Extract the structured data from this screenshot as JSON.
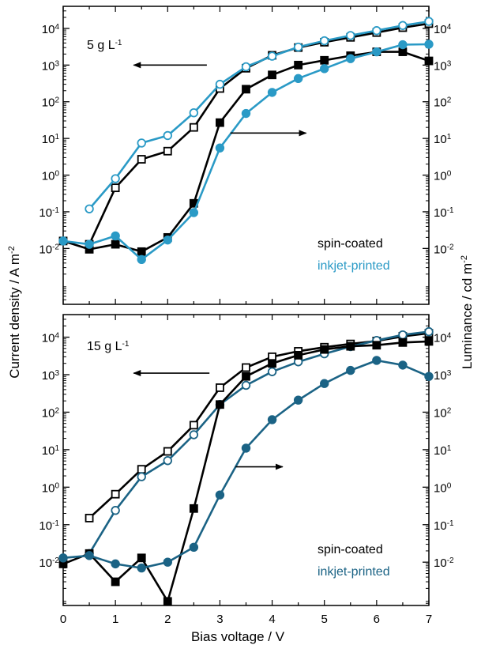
{
  "figure": {
    "left_axis_label": "Current density / A m",
    "left_axis_label_sup": "-2",
    "right_axis_label": "Luminance / cd m",
    "right_axis_label_sup": "-2",
    "x_axis_label": "Bias voltage / V"
  },
  "chart_data": [
    {
      "type": "line",
      "panel": "top",
      "annotation": "5 g L",
      "annotation_sup": "-1",
      "x": [
        0,
        0.5,
        1,
        1.5,
        2,
        2.5,
        3,
        3.5,
        4,
        4.5,
        5,
        5.5,
        6,
        6.5,
        7
      ],
      "xlim": [
        0,
        7
      ],
      "ylim": [
        0.0003,
        40000
      ],
      "yscale": "log",
      "y_ticks": [
        {
          "label": "10",
          "exp": "-2",
          "value": 0.01
        },
        {
          "label": "10",
          "exp": "-1",
          "value": 0.1
        },
        {
          "label": "10",
          "exp": "0",
          "value": 1
        },
        {
          "label": "10",
          "exp": "1",
          "value": 10
        },
        {
          "label": "10",
          "exp": "2",
          "value": 100
        },
        {
          "label": "10",
          "exp": "3",
          "value": 1000
        },
        {
          "label": "10",
          "exp": "4",
          "value": 10000
        }
      ],
      "legend": [
        {
          "label": "spin-coated",
          "color": "#000000"
        },
        {
          "label": "inkjet-printed",
          "color": "#2a9ac6"
        }
      ],
      "series": [
        {
          "name": "spin-coated",
          "axis": "left",
          "marker": "square",
          "filled": false,
          "color": "#000000",
          "x": [
            0.5,
            1,
            1.5,
            2,
            2.5,
            3,
            3.5,
            4,
            4.5,
            5,
            5.5,
            6,
            6.5,
            7
          ],
          "values": [
            0.013,
            0.45,
            2.7,
            4.5,
            20,
            230,
            820,
            1850,
            3000,
            4200,
            5700,
            7700,
            10500,
            13500
          ]
        },
        {
          "name": "inkjet-printed",
          "axis": "left",
          "marker": "circle",
          "filled": false,
          "color": "#2a9ac6",
          "x": [
            0.5,
            1,
            1.5,
            2,
            2.5,
            3,
            3.5,
            4,
            4.5,
            5,
            5.5,
            6,
            6.5,
            7
          ],
          "values": [
            0.12,
            0.8,
            7.5,
            12,
            50,
            300,
            900,
            1750,
            3100,
            4600,
            6400,
            8700,
            12000,
            15500
          ]
        },
        {
          "name": "spin-coated",
          "axis": "right",
          "marker": "square",
          "filled": true,
          "color": "#000000",
          "x": [
            0,
            0.5,
            1,
            1.5,
            2,
            2.5,
            3,
            3.5,
            4,
            4.5,
            5,
            5.5,
            6,
            6.5,
            7
          ],
          "values": [
            0.016,
            0.0095,
            0.013,
            0.0082,
            0.02,
            0.17,
            27,
            220,
            540,
            1000,
            1350,
            1800,
            2300,
            2300,
            1300
          ]
        },
        {
          "name": "inkjet-printed",
          "axis": "right",
          "marker": "circle",
          "filled": true,
          "color": "#2a9ac6",
          "x": [
            0,
            0.5,
            1,
            1.5,
            2,
            2.5,
            3,
            3.5,
            4,
            4.5,
            5,
            5.5,
            6,
            6.5,
            7
          ],
          "values": [
            0.016,
            0.013,
            0.022,
            0.005,
            0.017,
            0.095,
            5.5,
            48,
            180,
            430,
            800,
            1500,
            2300,
            3600,
            3700
          ]
        }
      ],
      "arrows": [
        {
          "direction": "left",
          "x_from": 2.75,
          "x_to": 1.35,
          "y": 1000
        },
        {
          "direction": "right",
          "x_from": 3.2,
          "x_to": 4.65,
          "y": 14
        }
      ]
    },
    {
      "type": "line",
      "panel": "bottom",
      "annotation": "15 g L",
      "annotation_sup": "-1",
      "x": [
        0,
        0.5,
        1,
        1.5,
        2,
        2.5,
        3,
        3.5,
        4,
        4.5,
        5,
        5.5,
        6,
        6.5,
        7
      ],
      "xlim": [
        0,
        7
      ],
      "ylim": [
        0.0007,
        40000
      ],
      "yscale": "log",
      "x_ticks": [
        "0",
        "1",
        "2",
        "3",
        "4",
        "5",
        "6",
        "7"
      ],
      "y_ticks": [
        {
          "label": "10",
          "exp": "-2",
          "value": 0.01
        },
        {
          "label": "10",
          "exp": "-1",
          "value": 0.1
        },
        {
          "label": "10",
          "exp": "0",
          "value": 1
        },
        {
          "label": "10",
          "exp": "1",
          "value": 10
        },
        {
          "label": "10",
          "exp": "2",
          "value": 100
        },
        {
          "label": "10",
          "exp": "3",
          "value": 1000
        },
        {
          "label": "10",
          "exp": "4",
          "value": 10000
        }
      ],
      "legend": [
        {
          "label": "spin-coated",
          "color": "#000000"
        },
        {
          "label": "inkjet-printed",
          "color": "#1b6385"
        }
      ],
      "series": [
        {
          "name": "spin-coated",
          "axis": "left",
          "marker": "square",
          "filled": false,
          "color": "#000000",
          "x": [
            0.5,
            1,
            1.5,
            2,
            2.5,
            3,
            3.5,
            4,
            4.5,
            5,
            5.5,
            6,
            6.5,
            7
          ],
          "values": [
            0.15,
            0.65,
            3,
            9,
            45,
            450,
            1550,
            3000,
            4200,
            5400,
            6600,
            7900,
            10500,
            12700
          ]
        },
        {
          "name": "inkjet-printed",
          "axis": "left",
          "marker": "circle",
          "filled": false,
          "color": "#1b6385",
          "x": [
            0.5,
            1,
            1.5,
            2,
            2.5,
            3,
            3.5,
            4,
            4.5,
            5,
            5.5,
            6,
            6.5,
            7
          ],
          "values": [
            0.017,
            0.24,
            1.9,
            5.1,
            25,
            160,
            520,
            1200,
            2200,
            3600,
            5600,
            8200,
            11500,
            14000
          ]
        },
        {
          "name": "spin-coated",
          "axis": "right",
          "marker": "square",
          "filled": true,
          "color": "#000000",
          "x": [
            0,
            0.5,
            1,
            1.5,
            2,
            2.5,
            3,
            3.5,
            4,
            4.5,
            5,
            5.5,
            6,
            6.5,
            7
          ],
          "values": [
            0.009,
            0.017,
            0.003,
            0.013,
            0.0009,
            0.27,
            160,
            900,
            2000,
            3300,
            4700,
            5700,
            6100,
            7200,
            7700
          ]
        },
        {
          "name": "inkjet-printed",
          "axis": "right",
          "marker": "circle",
          "filled": true,
          "color": "#1b6385",
          "x": [
            0,
            0.5,
            1,
            1.5,
            2,
            2.5,
            3,
            3.5,
            4,
            4.5,
            5,
            5.5,
            6,
            6.5,
            7
          ],
          "values": [
            0.013,
            0.015,
            0.009,
            0.007,
            0.01,
            0.025,
            0.62,
            11,
            63,
            210,
            580,
            1300,
            2400,
            1800,
            900
          ]
        }
      ],
      "arrows": [
        {
          "direction": "left",
          "x_from": 2.8,
          "x_to": 1.35,
          "y": 1100
        },
        {
          "direction": "right",
          "x_from": 3.3,
          "x_to": 4.2,
          "y": 3.5
        }
      ]
    }
  ]
}
